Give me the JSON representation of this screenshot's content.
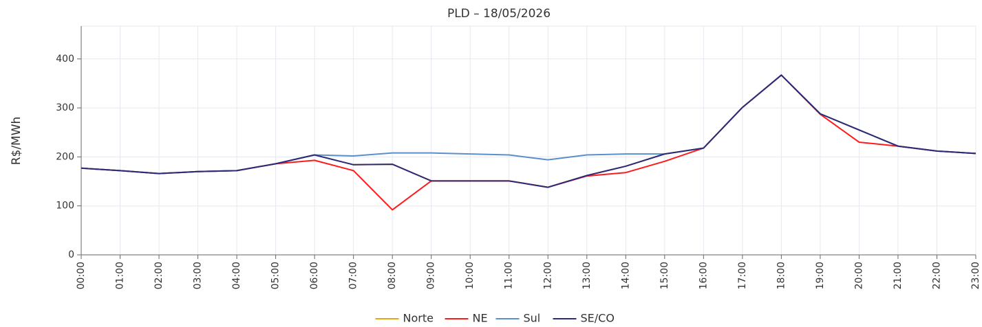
{
  "chart_data": {
    "type": "line",
    "title": "PLD – 18/05/2026",
    "y_label": "R$/MWh",
    "categories": [
      "00:00",
      "01:00",
      "02:00",
      "03:00",
      "04:00",
      "05:00",
      "06:00",
      "07:00",
      "08:00",
      "09:00",
      "10:00",
      "11:00",
      "12:00",
      "13:00",
      "14:00",
      "15:00",
      "16:00",
      "17:00",
      "18:00",
      "19:00",
      "20:00",
      "21:00",
      "22:00",
      "23:00"
    ],
    "series": [
      {
        "name": "Norte",
        "color": "#e6a817",
        "values": [
          177,
          172,
          166,
          170,
          172,
          186,
          204,
          184,
          185,
          151,
          151,
          151,
          138,
          162,
          181,
          206,
          218,
          301,
          367,
          288,
          255,
          222,
          212,
          207
        ]
      },
      {
        "name": "NE",
        "color": "#ff1a1a",
        "values": [
          177,
          172,
          166,
          170,
          172,
          186,
          193,
          172,
          92,
          151,
          151,
          151,
          138,
          161,
          168,
          191,
          218,
          301,
          367,
          287,
          230,
          222,
          212,
          207
        ]
      },
      {
        "name": "Sul",
        "color": "#5b8fc9",
        "values": [
          177,
          172,
          166,
          170,
          172,
          186,
          204,
          202,
          208,
          208,
          206,
          204,
          194,
          204,
          206,
          206,
          218,
          301,
          367,
          288,
          255,
          222,
          212,
          207
        ]
      },
      {
        "name": "SE/CO",
        "color": "#2b2a7a",
        "values": [
          177,
          172,
          166,
          170,
          172,
          186,
          204,
          184,
          185,
          151,
          151,
          151,
          138,
          162,
          181,
          206,
          218,
          301,
          367,
          288,
          255,
          222,
          212,
          207
        ]
      }
    ],
    "ylim": [
      0,
      467
    ],
    "yticks": [
      0,
      100,
      200,
      300,
      400
    ],
    "grid": true,
    "legend": "bottom"
  }
}
